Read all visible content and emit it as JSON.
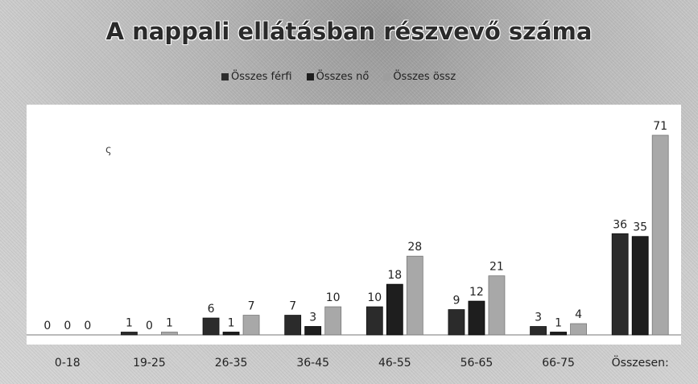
{
  "chart_data": {
    "type": "bar",
    "title": "A nappali ellátásban részvevő száma",
    "categories": [
      "0-18",
      "19-25",
      "26-35",
      "36-45",
      "46-55",
      "56-65",
      "66-75",
      "Összesen:"
    ],
    "series": [
      {
        "name": "Összes férfi",
        "color": "#2b2b2b",
        "values": [
          0,
          1,
          6,
          7,
          10,
          9,
          3,
          36
        ]
      },
      {
        "name": "Összes nő",
        "color": "#1e1e1e",
        "values": [
          0,
          0,
          1,
          3,
          18,
          12,
          1,
          35
        ]
      },
      {
        "name": "Összes össz",
        "color": "#9e9e9e",
        "values": [
          0,
          1,
          7,
          10,
          28,
          21,
          4,
          71
        ]
      }
    ],
    "ylim": [
      0,
      71
    ],
    "grid": false,
    "legend_position": "top",
    "data_labels": true,
    "stray_mark": "ς"
  }
}
